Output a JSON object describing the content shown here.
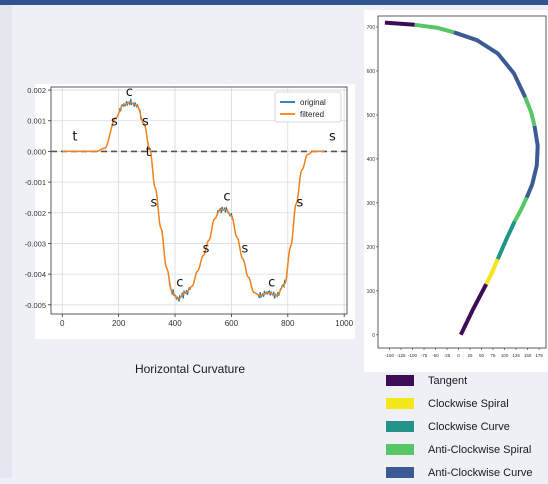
{
  "caption": "Horizontal Curvature",
  "chart_data": [
    {
      "type": "line",
      "title": "",
      "xlabel": "",
      "ylabel": "",
      "xlim": [
        -40,
        1010
      ],
      "ylim": [
        -0.0053,
        0.0021
      ],
      "xticks": [
        0,
        200,
        400,
        600,
        800,
        1000
      ],
      "yticks": [
        0.002,
        0.001,
        0.0,
        -0.001,
        -0.002,
        -0.003,
        -0.004,
        -0.005
      ],
      "ytick_labels": [
        "0.002",
        "0.001",
        "0.000",
        "-0.001",
        "-0.002",
        "-0.003",
        "-0.004",
        "-0.005"
      ],
      "grid": true,
      "legend_position": "top-right",
      "reference_line": {
        "y": 0.0,
        "style": "dashed"
      },
      "series": [
        {
          "name": "original",
          "color": "#1f77b4"
        },
        {
          "name": "filtered",
          "color": "#ff7f0e"
        }
      ],
      "keypoints": [
        [
          0,
          0
        ],
        [
          120,
          0
        ],
        [
          150,
          0.0001
        ],
        [
          190,
          0.0011
        ],
        [
          215,
          0.0015
        ],
        [
          240,
          0.0016
        ],
        [
          265,
          0.0015
        ],
        [
          290,
          0.0009
        ],
        [
          310,
          0.0001
        ],
        [
          330,
          -0.0012
        ],
        [
          350,
          -0.0025
        ],
        [
          370,
          -0.0038
        ],
        [
          390,
          -0.0046
        ],
        [
          410,
          -0.0048
        ],
        [
          440,
          -0.0046
        ],
        [
          460,
          -0.0044
        ],
        [
          480,
          -0.0039
        ],
        [
          500,
          -0.0034
        ],
        [
          520,
          -0.0029
        ],
        [
          540,
          -0.0022
        ],
        [
          560,
          -0.0019
        ],
        [
          580,
          -0.0019
        ],
        [
          600,
          -0.0021
        ],
        [
          620,
          -0.0028
        ],
        [
          640,
          -0.0035
        ],
        [
          660,
          -0.0041
        ],
        [
          680,
          -0.0046
        ],
        [
          700,
          -0.0047
        ],
        [
          730,
          -0.0046
        ],
        [
          760,
          -0.0047
        ],
        [
          790,
          -0.0043
        ],
        [
          810,
          -0.0031
        ],
        [
          830,
          -0.0017
        ],
        [
          850,
          -0.0006
        ],
        [
          870,
          -0.0001
        ],
        [
          890,
          0.0
        ],
        [
          930,
          0.0
        ]
      ],
      "annotations": [
        {
          "text": "t",
          "x": 45,
          "y": 0.00035
        },
        {
          "text": "c",
          "x": 238,
          "y": 0.0018
        },
        {
          "text": "s",
          "x": 185,
          "y": 0.00085
        },
        {
          "text": "s",
          "x": 295,
          "y": 0.00085
        },
        {
          "text": "t",
          "x": 305,
          "y": -0.00015
        },
        {
          "text": "s",
          "x": 325,
          "y": -0.0018
        },
        {
          "text": "c",
          "x": 417,
          "y": -0.0044
        },
        {
          "text": "s",
          "x": 510,
          "y": -0.0033
        },
        {
          "text": "c",
          "x": 584,
          "y": -0.0016
        },
        {
          "text": "s",
          "x": 648,
          "y": -0.0033
        },
        {
          "text": "c",
          "x": 743,
          "y": -0.0044
        },
        {
          "text": "s",
          "x": 843,
          "y": -0.0018
        },
        {
          "text": "s",
          "x": 958,
          "y": 0.00035
        }
      ]
    },
    {
      "type": "line",
      "title": "",
      "xlabel": "",
      "ylabel": "",
      "xlim": [
        -175,
        190
      ],
      "ylim": [
        -30,
        725
      ],
      "xticks": [
        -150,
        -125,
        -100,
        -75,
        -50,
        -25,
        0,
        25,
        50,
        75,
        100,
        125,
        150,
        175
      ],
      "yticks": [
        0,
        100,
        200,
        300,
        400,
        500,
        600,
        700
      ],
      "grid": false,
      "segments": [
        {
          "kind": "Tangent",
          "points": [
            [
              -160,
              710
            ],
            [
              -95,
              705
            ]
          ]
        },
        {
          "kind": "Anti-Clockwise Spiral",
          "points": [
            [
              -95,
              705
            ],
            [
              -45,
              698
            ],
            [
              -10,
              688
            ]
          ]
        },
        {
          "kind": "Anti-Clockwise Curve",
          "points": [
            [
              -10,
              688
            ],
            [
              40,
              670
            ],
            [
              85,
              640
            ],
            [
              120,
              595
            ],
            [
              145,
              540
            ]
          ]
        },
        {
          "kind": "Anti-Clockwise Spiral",
          "points": [
            [
              145,
              540
            ],
            [
              158,
              505
            ],
            [
              165,
              475
            ]
          ]
        },
        {
          "kind": "Anti-Clockwise Curve",
          "points": [
            [
              165,
              475
            ],
            [
              172,
              430
            ],
            [
              170,
              385
            ],
            [
              160,
              342
            ],
            [
              148,
              312
            ]
          ]
        },
        {
          "kind": "Anti-Clockwise Spiral",
          "points": [
            [
              148,
              312
            ],
            [
              136,
              285
            ],
            [
              122,
              258
            ]
          ]
        },
        {
          "kind": "Clockwise Curve",
          "points": [
            [
              122,
              258
            ],
            [
              105,
              220
            ],
            [
              85,
              172
            ]
          ]
        },
        {
          "kind": "Clockwise Spiral",
          "points": [
            [
              85,
              172
            ],
            [
              72,
              140
            ],
            [
              60,
              115
            ]
          ]
        },
        {
          "kind": "Tangent",
          "points": [
            [
              60,
              115
            ],
            [
              30,
              55
            ],
            [
              5,
              0
            ]
          ]
        }
      ]
    }
  ],
  "legend2": [
    {
      "label": "Tangent",
      "color": "#3d0c56"
    },
    {
      "label": "Clockwise Spiral",
      "color": "#f5e61a"
    },
    {
      "label": "Clockwise Curve",
      "color": "#22948a"
    },
    {
      "label": "Anti-Clockwise Spiral",
      "color": "#57c667"
    },
    {
      "label": "Anti-Clockwise Curve",
      "color": "#3b5a96"
    }
  ]
}
